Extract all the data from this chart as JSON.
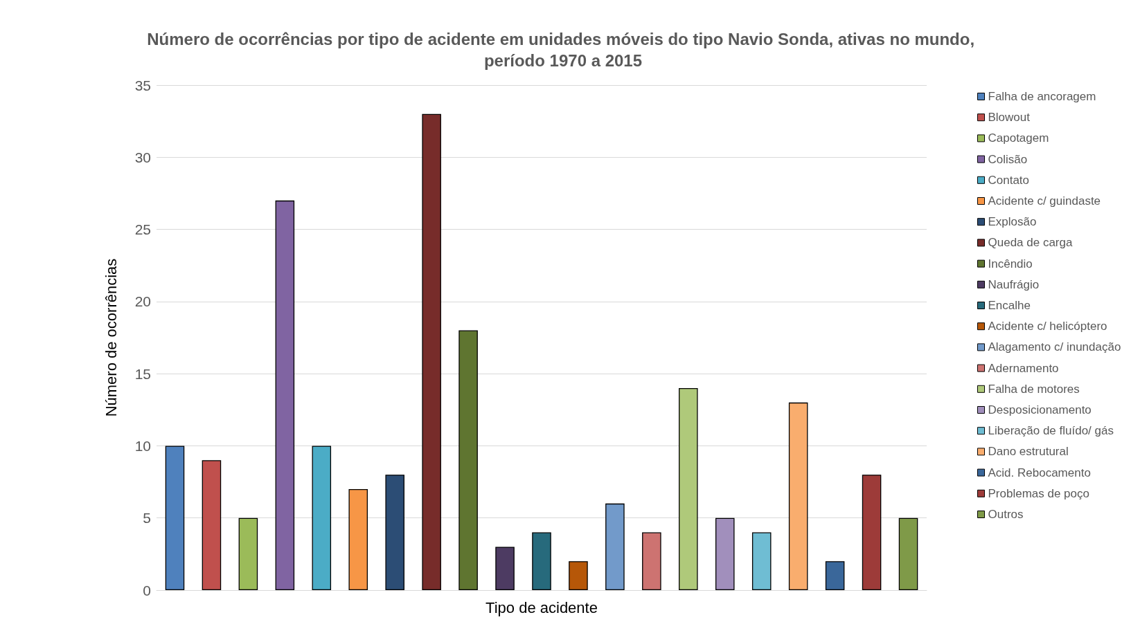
{
  "chart_data": {
    "type": "bar",
    "title": "Número de ocorrências por tipo de acidente em unidades móveis do tipo Navio Sonda, ativas no mundo, período 1970 a 2015",
    "xlabel": "Tipo de acidente",
    "ylabel": "Número de ocorrências",
    "categories": [
      null,
      null,
      null,
      null,
      null,
      null,
      null,
      null,
      null,
      null,
      null,
      null,
      null,
      null,
      null,
      null,
      null,
      null,
      null,
      null,
      null
    ],
    "series": [
      {
        "name": "Falha de ancoragem",
        "color": "#4f81bd",
        "values": [
          10,
          null,
          null,
          null,
          null,
          null,
          null,
          null,
          null,
          null,
          null,
          null,
          null,
          null,
          null,
          null,
          null,
          null,
          null,
          null,
          null
        ]
      },
      {
        "name": "Blowout",
        "color": "#c0504d",
        "values": [
          null,
          9,
          null,
          null,
          null,
          null,
          null,
          null,
          null,
          null,
          null,
          null,
          null,
          null,
          null,
          null,
          null,
          null,
          null,
          null,
          null
        ]
      },
      {
        "name": "Capotagem",
        "color": "#9bbb59",
        "values": [
          null,
          null,
          5,
          null,
          null,
          null,
          null,
          null,
          null,
          null,
          null,
          null,
          null,
          null,
          null,
          null,
          null,
          null,
          null,
          null,
          null
        ]
      },
      {
        "name": "Colisão",
        "color": "#8064a2",
        "values": [
          null,
          null,
          null,
          27,
          null,
          null,
          null,
          null,
          null,
          null,
          null,
          null,
          null,
          null,
          null,
          null,
          null,
          null,
          null,
          null,
          null
        ]
      },
      {
        "name": "Contato",
        "color": "#4bacc6",
        "values": [
          null,
          null,
          null,
          null,
          10,
          null,
          null,
          null,
          null,
          null,
          null,
          null,
          null,
          null,
          null,
          null,
          null,
          null,
          null,
          null,
          null
        ]
      },
      {
        "name": "Acidente c/ guindaste",
        "color": "#f79646",
        "values": [
          null,
          null,
          null,
          null,
          null,
          7,
          null,
          null,
          null,
          null,
          null,
          null,
          null,
          null,
          null,
          null,
          null,
          null,
          null,
          null,
          null
        ]
      },
      {
        "name": "Explosão",
        "color": "#2c4d75",
        "values": [
          null,
          null,
          null,
          null,
          null,
          null,
          8,
          null,
          null,
          null,
          null,
          null,
          null,
          null,
          null,
          null,
          null,
          null,
          null,
          null,
          null
        ]
      },
      {
        "name": "Queda de carga",
        "color": "#772c2a",
        "values": [
          null,
          null,
          null,
          null,
          null,
          null,
          null,
          33,
          null,
          null,
          null,
          null,
          null,
          null,
          null,
          null,
          null,
          null,
          null,
          null,
          null
        ]
      },
      {
        "name": "Incêndio",
        "color": "#5f7530",
        "values": [
          null,
          null,
          null,
          null,
          null,
          null,
          null,
          null,
          18,
          null,
          null,
          null,
          null,
          null,
          null,
          null,
          null,
          null,
          null,
          null,
          null
        ]
      },
      {
        "name": "Naufrágio",
        "color": "#4d3b62",
        "values": [
          null,
          null,
          null,
          null,
          null,
          null,
          null,
          null,
          null,
          3,
          null,
          null,
          null,
          null,
          null,
          null,
          null,
          null,
          null,
          null,
          null
        ]
      },
      {
        "name": "Encalhe",
        "color": "#276a7c",
        "values": [
          null,
          null,
          null,
          null,
          null,
          null,
          null,
          null,
          null,
          null,
          4,
          null,
          null,
          null,
          null,
          null,
          null,
          null,
          null,
          null,
          null
        ]
      },
      {
        "name": "Acidente c/ helicóptero",
        "color": "#b65708",
        "values": [
          null,
          null,
          null,
          null,
          null,
          null,
          null,
          null,
          null,
          null,
          null,
          2,
          null,
          null,
          null,
          null,
          null,
          null,
          null,
          null,
          null
        ]
      },
      {
        "name": "Alagamento c/ inundação",
        "color": "#729aca",
        "values": [
          null,
          null,
          null,
          null,
          null,
          null,
          null,
          null,
          null,
          null,
          null,
          null,
          6,
          null,
          null,
          null,
          null,
          null,
          null,
          null,
          null
        ]
      },
      {
        "name": "Adernamento",
        "color": "#cd7371",
        "values": [
          null,
          null,
          null,
          null,
          null,
          null,
          null,
          null,
          null,
          null,
          null,
          null,
          null,
          4,
          null,
          null,
          null,
          null,
          null,
          null,
          null
        ]
      },
      {
        "name": "Falha de motores",
        "color": "#afc97a",
        "values": [
          null,
          null,
          null,
          null,
          null,
          null,
          null,
          null,
          null,
          null,
          null,
          null,
          null,
          null,
          14,
          null,
          null,
          null,
          null,
          null,
          null
        ]
      },
      {
        "name": "Desposicionamento",
        "color": "#a18fbc",
        "values": [
          null,
          null,
          null,
          null,
          null,
          null,
          null,
          null,
          null,
          null,
          null,
          null,
          null,
          null,
          null,
          5,
          null,
          null,
          null,
          null,
          null
        ]
      },
      {
        "name": "Liberação de fluído/ gás",
        "color": "#6fbdd3",
        "values": [
          null,
          null,
          null,
          null,
          null,
          null,
          null,
          null,
          null,
          null,
          null,
          null,
          null,
          null,
          null,
          null,
          4,
          null,
          null,
          null,
          null
        ]
      },
      {
        "name": "Dano estrutural",
        "color": "#f9ad6e",
        "values": [
          null,
          null,
          null,
          null,
          null,
          null,
          null,
          null,
          null,
          null,
          null,
          null,
          null,
          null,
          null,
          null,
          null,
          13,
          null,
          null,
          null
        ]
      },
      {
        "name": "Acid. Rebocamento",
        "color": "#3a679a",
        "values": [
          null,
          null,
          null,
          null,
          null,
          null,
          null,
          null,
          null,
          null,
          null,
          null,
          null,
          null,
          null,
          null,
          null,
          null,
          2,
          null,
          null
        ]
      },
      {
        "name": "Problemas de poço",
        "color": "#9d3b39",
        "values": [
          null,
          null,
          null,
          null,
          null,
          null,
          null,
          null,
          null,
          null,
          null,
          null,
          null,
          null,
          null,
          null,
          null,
          null,
          null,
          8,
          null
        ]
      },
      {
        "name": "Outros",
        "color": "#7f9a48",
        "values": [
          null,
          null,
          null,
          null,
          null,
          null,
          null,
          null,
          null,
          null,
          null,
          null,
          null,
          null,
          null,
          null,
          null,
          null,
          null,
          null,
          5
        ]
      }
    ],
    "ylim": [
      0,
      35
    ],
    "yticks": [
      0,
      5,
      10,
      15,
      20,
      25,
      30,
      35
    ],
    "grid": "y",
    "legend": "right",
    "tick_labels": "y"
  }
}
